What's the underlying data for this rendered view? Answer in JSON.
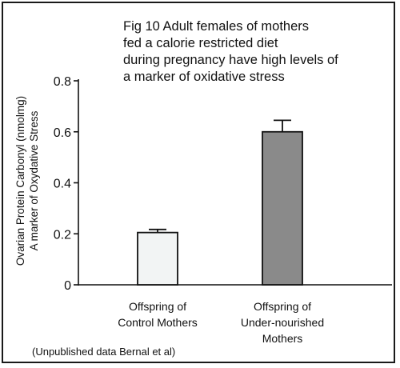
{
  "chart_data": {
    "type": "bar",
    "title_lines": [
      "Fig 10 Adult females of mothers",
      "fed a calorie restricted diet",
      "during pregnancy have high levels of",
      "a marker of oxidative stress"
    ],
    "ylabel_lines": [
      "Ovarian Protein Carbonyl (nmolmg)",
      "A marker of Oxydative Stress"
    ],
    "xlabel": "",
    "categories": [
      [
        "Offspring of",
        "Control Mothers"
      ],
      [
        "Offspring of",
        "Under-nourished",
        "Mothers"
      ]
    ],
    "values": [
      0.205,
      0.6
    ],
    "errors": [
      0.012,
      0.045
    ],
    "bar_colors": [
      "#f2f4f4",
      "#8a8a8a"
    ],
    "ylim": [
      0,
      0.8
    ],
    "yticks": [
      0,
      0.2,
      0.4,
      0.6,
      0.8
    ],
    "ytick_labels": [
      "0",
      "0.2",
      "0.4",
      "0.6",
      "0.8"
    ],
    "grid": false,
    "legend": "none",
    "source_note": "(Unpublished data Bernal et al)"
  }
}
